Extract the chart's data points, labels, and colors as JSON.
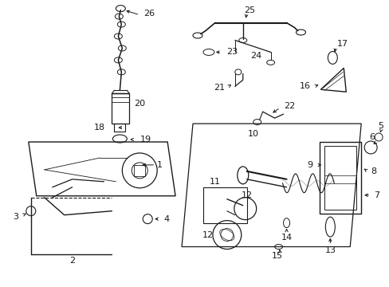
{
  "background_color": "#ffffff",
  "line_color": "#1a1a1a",
  "fig_width": 4.89,
  "fig_height": 3.6,
  "dpi": 100
}
